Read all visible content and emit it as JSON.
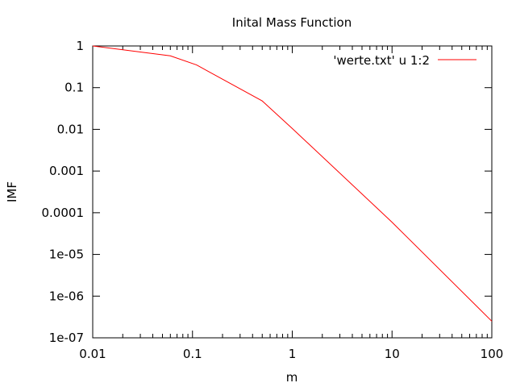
{
  "chart_data": {
    "type": "line",
    "title": "Inital Mass Function",
    "xlabel": "m",
    "ylabel": "IMF",
    "x_scale": "log",
    "y_scale": "log",
    "xlim": [
      0.01,
      100
    ],
    "ylim": [
      1e-07,
      1
    ],
    "x_ticks": [
      "0.01",
      "0.1",
      "1",
      "10",
      "100"
    ],
    "y_ticks": [
      "1e-07",
      "1e-06",
      "1e-05",
      "0.0001",
      "0.001",
      "0.01",
      "0.1",
      "1"
    ],
    "grid": false,
    "legend_position": "top-right",
    "series": [
      {
        "name": "'werte.txt' u 1:2",
        "color": "#ff0000",
        "x": [
          0.01,
          0.06,
          0.11,
          0.5,
          1,
          10,
          100
        ],
        "y": [
          1.0,
          0.58,
          0.35,
          0.048,
          0.0105,
          5.93e-05,
          2.5e-07
        ]
      }
    ]
  }
}
